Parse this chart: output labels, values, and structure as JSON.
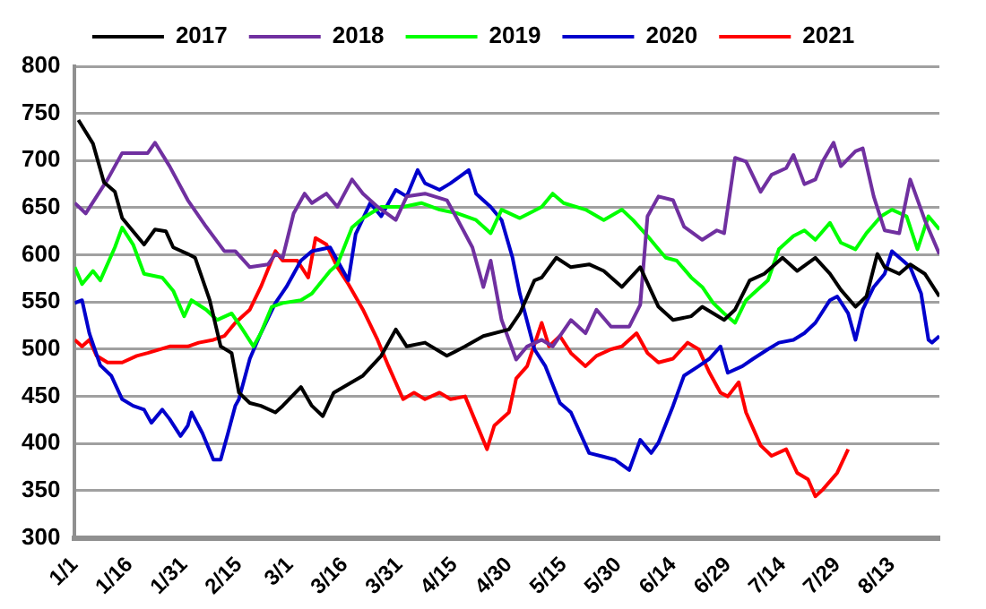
{
  "chart_data": {
    "type": "line",
    "legend": "top",
    "grid": "y",
    "marker": "none",
    "line_style": "solid",
    "ylim": [
      300,
      800
    ],
    "yticks": [
      300,
      350,
      400,
      450,
      500,
      550,
      600,
      650,
      700,
      750,
      800
    ],
    "xlim": [
      "--01-01",
      "--08-26"
    ],
    "xticks": [
      {
        "value": "--01-01",
        "label": "1/1"
      },
      {
        "value": "--01-16",
        "label": "1/16"
      },
      {
        "value": "--01-31",
        "label": "1/31"
      },
      {
        "value": "--02-15",
        "label": "2/15"
      },
      {
        "value": "--03-01",
        "label": "3/1"
      },
      {
        "value": "--03-16",
        "label": "3/16"
      },
      {
        "value": "--03-31",
        "label": "3/31"
      },
      {
        "value": "--04-15",
        "label": "4/15"
      },
      {
        "value": "--04-30",
        "label": "4/30"
      },
      {
        "value": "--05-15",
        "label": "5/15"
      },
      {
        "value": "--05-30",
        "label": "5/30"
      },
      {
        "value": "--06-14",
        "label": "6/14"
      },
      {
        "value": "--06-29",
        "label": "6/29"
      },
      {
        "value": "--07-14",
        "label": "7/14"
      },
      {
        "value": "--07-29",
        "label": "7/29"
      },
      {
        "value": "--08-13",
        "label": "8/13"
      }
    ],
    "series": [
      {
        "name": "2017",
        "color": "#000000",
        "x": [
          "--01-02",
          "--01-06",
          "--01-09",
          "--01-12",
          "--01-14",
          "--01-20",
          "--01-23",
          "--01-26",
          "--01-28",
          "--02-01",
          "--02-03",
          "--02-07",
          "--02-10",
          "--02-13",
          "--02-15",
          "--02-18",
          "--02-21",
          "--02-25",
          "--02-27",
          "--03-04",
          "--03-07",
          "--03-10",
          "--03-13",
          "--03-21",
          "--03-26",
          "--03-30",
          "--04-02",
          "--04-07",
          "--04-13",
          "--04-18",
          "--04-23",
          "--04-30",
          "--05-03",
          "--05-07",
          "--05-09",
          "--05-13",
          "--05-17",
          "--05-22",
          "--05-26",
          "--05-31",
          "--06-05",
          "--06-10",
          "--06-14",
          "--06-19",
          "--06-22",
          "--06-28",
          "--07-01",
          "--07-05",
          "--07-09",
          "--07-14",
          "--07-18",
          "--07-23",
          "--07-27",
          "--07-30",
          "--08-03",
          "--08-06",
          "--08-09",
          "--08-11",
          "--08-15",
          "--08-18",
          "--08-22",
          "--08-26"
        ],
        "values": [
          743,
          718,
          677,
          667,
          639,
          611,
          627,
          625,
          608,
          601,
          597,
          552,
          503,
          496,
          454,
          443,
          440,
          433,
          440,
          460,
          440,
          429,
          454,
          472,
          493,
          521,
          503,
          507,
          493,
          503,
          514,
          521,
          538,
          573,
          576,
          597,
          587,
          590,
          583,
          566,
          587,
          545,
          531,
          535,
          545,
          531,
          542,
          573,
          580,
          597,
          583,
          597,
          580,
          563,
          545,
          556,
          601,
          587,
          580,
          590,
          580,
          556
        ]
      },
      {
        "name": "2018",
        "color": "#7030a0",
        "x": [
          "--01-01",
          "--01-04",
          "--01-07",
          "--01-10",
          "--01-14",
          "--01-18",
          "--01-21",
          "--01-23",
          "--01-27",
          "--02-01",
          "--02-06",
          "--02-11",
          "--02-14",
          "--02-18",
          "--02-23",
          "--02-25",
          "--02-27",
          "--03-02",
          "--03-05",
          "--03-07",
          "--03-11",
          "--03-14",
          "--03-18",
          "--03-21",
          "--03-25",
          "--03-30",
          "--04-02",
          "--04-07",
          "--04-13",
          "--04-16",
          "--04-20",
          "--04-23",
          "--04-25",
          "--04-28",
          "--05-02",
          "--05-05",
          "--05-09",
          "--05-12",
          "--05-17",
          "--05-21",
          "--05-24",
          "--05-28",
          "--06-02",
          "--06-05",
          "--06-07",
          "--06-10",
          "--06-14",
          "--06-17",
          "--06-22",
          "--06-26",
          "--06-28",
          "--07-01",
          "--07-04",
          "--07-08",
          "--07-11",
          "--07-15",
          "--07-17",
          "--07-20",
          "--07-23",
          "--07-25",
          "--07-28",
          "--07-30",
          "--08-03",
          "--08-05",
          "--08-08",
          "--08-11",
          "--08-15",
          "--08-18",
          "--08-22",
          "--08-26"
        ],
        "values": [
          655,
          644,
          662,
          680,
          708,
          708,
          708,
          719,
          694,
          658,
          630,
          604,
          604,
          587,
          590,
          601,
          597,
          644,
          665,
          655,
          665,
          651,
          680,
          665,
          651,
          637,
          662,
          665,
          658,
          637,
          608,
          566,
          594,
          531,
          489,
          503,
          510,
          503,
          531,
          517,
          542,
          524,
          524,
          547,
          641,
          662,
          658,
          630,
          616,
          626,
          623,
          703,
          699,
          667,
          685,
          692,
          706,
          675,
          680,
          699,
          719,
          694,
          710,
          713,
          662,
          626,
          623,
          680,
          637,
          601
        ]
      },
      {
        "name": "2019",
        "color": "#00ff00",
        "x": [
          "--01-01",
          "--01-03",
          "--01-06",
          "--01-08",
          "--01-12",
          "--01-14",
          "--01-17",
          "--01-20",
          "--01-25",
          "--01-28",
          "--01-31",
          "--02-02",
          "--02-06",
          "--02-09",
          "--02-13",
          "--02-16",
          "--02-19",
          "--02-21",
          "--02-24",
          "--02-27",
          "--03-04",
          "--03-07",
          "--03-12",
          "--03-14",
          "--03-18",
          "--03-21",
          "--03-26",
          "--04-01",
          "--04-06",
          "--04-11",
          "--04-16",
          "--04-21",
          "--04-25",
          "--04-28",
          "--05-03",
          "--05-09",
          "--05-12",
          "--05-15",
          "--05-21",
          "--05-26",
          "--05-31",
          "--06-03",
          "--06-07",
          "--06-10",
          "--06-12",
          "--06-15",
          "--06-19",
          "--06-22",
          "--06-25",
          "--06-28",
          "--07-01",
          "--07-04",
          "--07-06",
          "--07-10",
          "--07-13",
          "--07-17",
          "--07-20",
          "--07-23",
          "--07-27",
          "--07-30",
          "--08-03",
          "--08-06",
          "--08-10",
          "--08-13",
          "--08-17",
          "--08-20",
          "--08-23",
          "--08-26"
        ],
        "values": [
          587,
          569,
          583,
          573,
          608,
          629,
          611,
          580,
          576,
          562,
          535,
          552,
          542,
          531,
          538,
          521,
          503,
          517,
          545,
          549,
          552,
          559,
          583,
          590,
          629,
          639,
          651,
          651,
          655,
          648,
          644,
          637,
          623,
          648,
          639,
          651,
          665,
          655,
          648,
          637,
          648,
          637,
          620,
          606,
          597,
          594,
          576,
          566,
          549,
          538,
          528,
          552,
          559,
          573,
          606,
          620,
          626,
          616,
          634,
          613,
          606,
          623,
          641,
          648,
          641,
          606,
          641,
          627
        ]
      },
      {
        "name": "2020",
        "color": "#0000cc",
        "x": [
          "--01-01",
          "--01-03",
          "--01-05",
          "--01-08",
          "--01-11",
          "--01-14",
          "--01-17",
          "--01-20",
          "--01-22",
          "--01-25",
          "--01-27",
          "--01-30",
          "--02-01",
          "--02-02",
          "--02-05",
          "--02-08",
          "--02-10",
          "--02-12",
          "--02-14",
          "--02-15",
          "--02-18",
          "--02-21",
          "--02-25",
          "--02-28",
          "--03-04",
          "--03-07",
          "--03-12",
          "--03-14",
          "--03-17",
          "--03-19",
          "--03-23",
          "--03-26",
          "--03-30",
          "--04-02",
          "--04-05",
          "--04-07",
          "--04-11",
          "--04-14",
          "--04-19",
          "--04-21",
          "--04-25",
          "--04-28",
          "--05-01",
          "--05-03",
          "--05-07",
          "--05-10",
          "--05-14",
          "--05-17",
          "--05-22",
          "--05-26",
          "--05-29",
          "--06-02",
          "--06-05",
          "--06-08",
          "--06-10",
          "--06-14",
          "--06-17",
          "--06-21",
          "--06-24",
          "--06-27",
          "--06-29",
          "--07-03",
          "--07-06",
          "--07-10",
          "--07-13",
          "--07-17",
          "--07-20",
          "--07-23",
          "--07-27",
          "--07-29",
          "--08-01",
          "--08-03",
          "--08-05",
          "--08-08",
          "--08-11",
          "--08-13",
          "--08-16",
          "--08-18",
          "--08-21",
          "--08-23",
          "--08-24",
          "--08-26"
        ],
        "values": [
          549,
          552,
          517,
          483,
          472,
          447,
          440,
          436,
          422,
          436,
          426,
          408,
          419,
          433,
          411,
          383,
          383,
          411,
          440,
          447,
          490,
          517,
          549,
          566,
          594,
          604,
          608,
          594,
          573,
          622,
          655,
          641,
          669,
          662,
          690,
          676,
          669,
          676,
          690,
          665,
          651,
          637,
          597,
          559,
          500,
          482,
          443,
          433,
          390,
          386,
          383,
          372,
          404,
          390,
          401,
          440,
          472,
          482,
          490,
          503,
          475,
          482,
          490,
          500,
          507,
          510,
          517,
          528,
          552,
          556,
          538,
          510,
          542,
          566,
          580,
          604,
          594,
          587,
          559,
          510,
          507,
          514
        ]
      },
      {
        "name": "2021",
        "color": "#ff0000",
        "x": [
          "--01-01",
          "--01-03",
          "--01-05",
          "--01-07",
          "--01-10",
          "--01-14",
          "--01-18",
          "--01-21",
          "--01-27",
          "--02-01",
          "--02-04",
          "--02-08",
          "--02-11",
          "--02-14",
          "--02-18",
          "--02-21",
          "--02-25",
          "--02-27",
          "--03-03",
          "--03-06",
          "--03-08",
          "--03-11",
          "--03-14",
          "--03-17",
          "--03-21",
          "--03-25",
          "--03-28",
          "--04-01",
          "--04-04",
          "--04-07",
          "--04-11",
          "--04-14",
          "--04-18",
          "--04-21",
          "--04-24",
          "--04-26",
          "--04-30",
          "--05-02",
          "--05-05",
          "--05-09",
          "--05-11",
          "--05-14",
          "--05-17",
          "--05-21",
          "--05-24",
          "--05-28",
          "--05-31",
          "--06-04",
          "--06-07",
          "--06-10",
          "--06-14",
          "--06-18",
          "--06-21",
          "--06-24",
          "--06-27",
          "--06-29",
          "--07-02",
          "--07-04",
          "--07-08",
          "--07-11",
          "--07-15",
          "--07-18",
          "--07-21",
          "--07-23",
          "--07-25",
          "--07-29",
          "--08-01"
        ],
        "values": [
          510,
          503,
          510,
          493,
          486,
          486,
          493,
          496,
          503,
          503,
          507,
          510,
          514,
          528,
          542,
          566,
          604,
          594,
          594,
          576,
          618,
          611,
          587,
          569,
          542,
          510,
          482,
          447,
          454,
          447,
          454,
          447,
          450,
          422,
          394,
          419,
          433,
          469,
          482,
          528,
          503,
          514,
          496,
          482,
          493,
          500,
          503,
          517,
          496,
          486,
          490,
          507,
          500,
          475,
          454,
          450,
          465,
          433,
          398,
          387,
          394,
          369,
          362,
          344,
          351,
          369,
          394
        ]
      }
    ]
  }
}
